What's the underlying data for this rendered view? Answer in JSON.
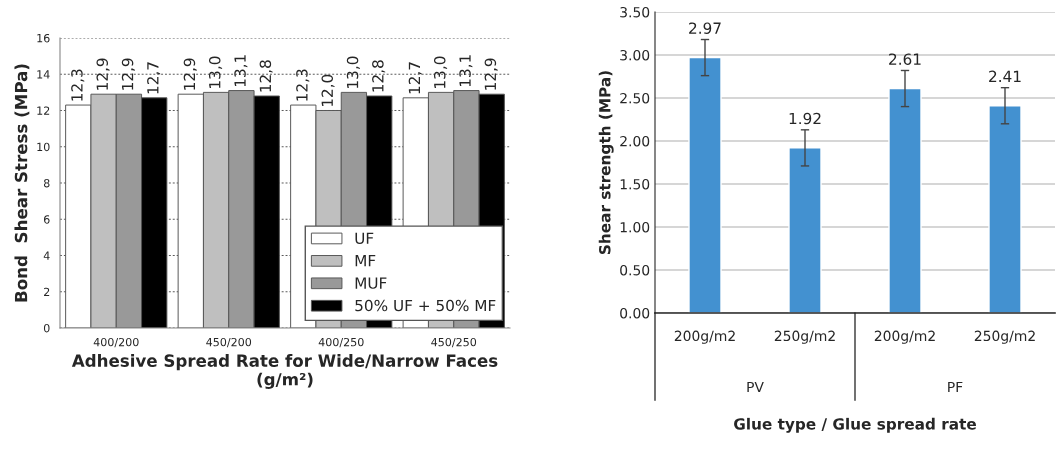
{
  "chart_data": [
    {
      "type": "bar",
      "ylabel": "Bond  Shear Stress (MPa)",
      "xlabel": "Adhesive Spread Rate for Wide/Narrow Faces\n(g/m²)",
      "categories": [
        "400/200",
        "450/200",
        "400/250",
        "450/250"
      ],
      "series": [
        {
          "name": "UF",
          "color": "#ffffff",
          "values": [
            12.3,
            12.9,
            12.3,
            12.7
          ],
          "value_labels": [
            "12,3",
            "12,9",
            "12,3",
            "12,7"
          ]
        },
        {
          "name": "MF",
          "color": "#bfbfbf",
          "values": [
            12.9,
            13.0,
            12.0,
            13.0
          ],
          "value_labels": [
            "12,9",
            "13,0",
            "12,0",
            "13,0"
          ]
        },
        {
          "name": "MUF",
          "color": "#999999",
          "values": [
            12.9,
            13.1,
            13.0,
            13.1
          ],
          "value_labels": [
            "12,9",
            "13,1",
            "13,0",
            "13,1"
          ]
        },
        {
          "name": "50% UF + 50% MF",
          "color": "#000000",
          "values": [
            12.7,
            12.8,
            12.8,
            12.9
          ],
          "value_labels": [
            "12,7",
            "12,8",
            "12,8",
            "12,9"
          ]
        }
      ],
      "ylim": [
        0,
        16
      ],
      "yticks": [
        0,
        2,
        4,
        6,
        8,
        10,
        12,
        14,
        16
      ],
      "grid": "y",
      "legend": "bottom right"
    },
    {
      "type": "bar",
      "ylabel": "Shear strength (MPa)",
      "xlabel": "Glue type / Glue spread rate",
      "categories": [
        "200g/m2",
        "250g/m2",
        "200g/m2",
        "250g/m2"
      ],
      "values": [
        2.97,
        1.92,
        2.61,
        2.41
      ],
      "errors": [
        0.21,
        0.21,
        0.21,
        0.21
      ],
      "color": "#4391d0",
      "data_labels": true,
      "annotations": [
        "PV",
        "PF"
      ],
      "ylim": [
        0,
        3.5
      ],
      "yticks": [
        {
          "value": 0,
          "label": "0.00"
        },
        {
          "value": 0.5,
          "label": "0.50"
        },
        {
          "value": 1,
          "label": "1.00"
        },
        {
          "value": 1.5,
          "label": "1.50"
        },
        {
          "value": 2,
          "label": "2.00"
        },
        {
          "value": 2.5,
          "label": "2.50"
        },
        {
          "value": 3,
          "label": "3.00"
        },
        {
          "value": 3.5,
          "label": "3.50"
        }
      ],
      "grid": "y"
    }
  ]
}
